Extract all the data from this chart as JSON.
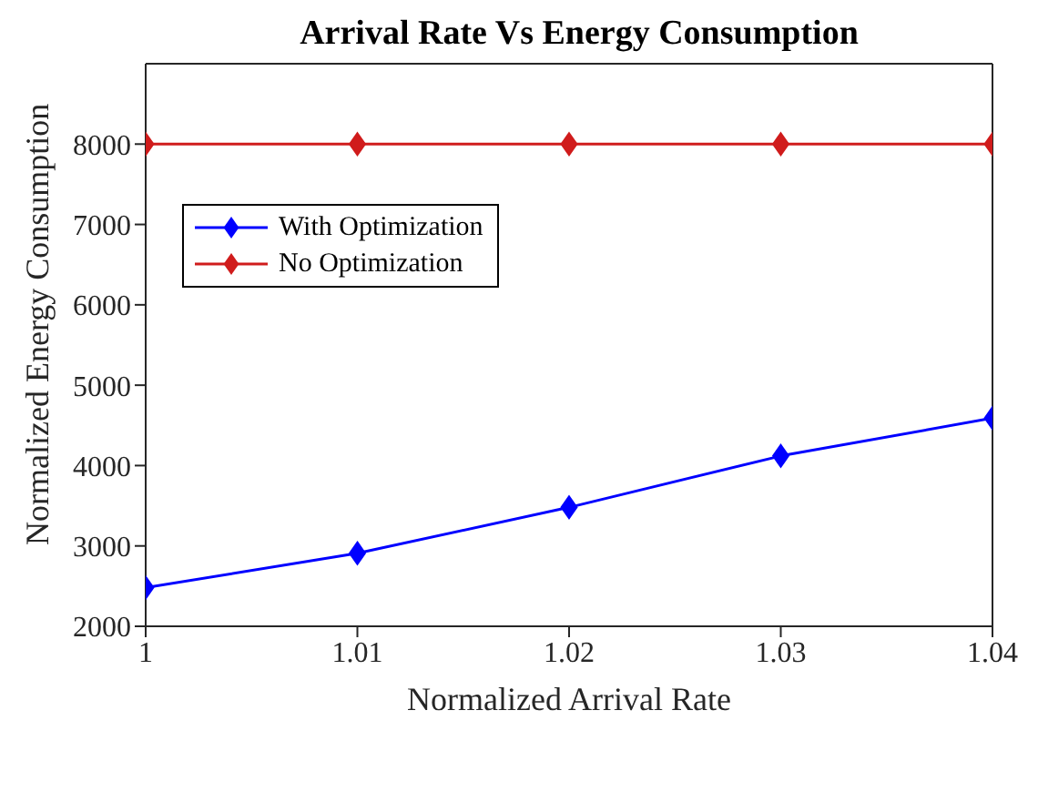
{
  "chart_data": {
    "type": "line",
    "title": "Arrival Rate Vs Energy Consumption",
    "xlabel": "Normalized Arrival Rate",
    "ylabel": "Normalized Energy Consumption",
    "x": [
      1,
      1.01,
      1.02,
      1.03,
      1.04
    ],
    "series": [
      {
        "name": "With Optimization",
        "color": "#0000ff",
        "values": [
          2480,
          2910,
          3480,
          4120,
          4590
        ]
      },
      {
        "name": "No Optimization",
        "color": "#d01c1c",
        "values": [
          8000,
          8000,
          8000,
          8000,
          8000
        ]
      }
    ],
    "xlim": [
      1,
      1.04
    ],
    "xticks": [
      1,
      1.01,
      1.02,
      1.03,
      1.04
    ],
    "ylim": [
      2000,
      9000
    ],
    "yticks": [
      2000,
      3000,
      4000,
      5000,
      6000,
      7000,
      8000
    ],
    "grid": false,
    "legend": "top left",
    "marker": "diamond",
    "line_style": "solid"
  }
}
